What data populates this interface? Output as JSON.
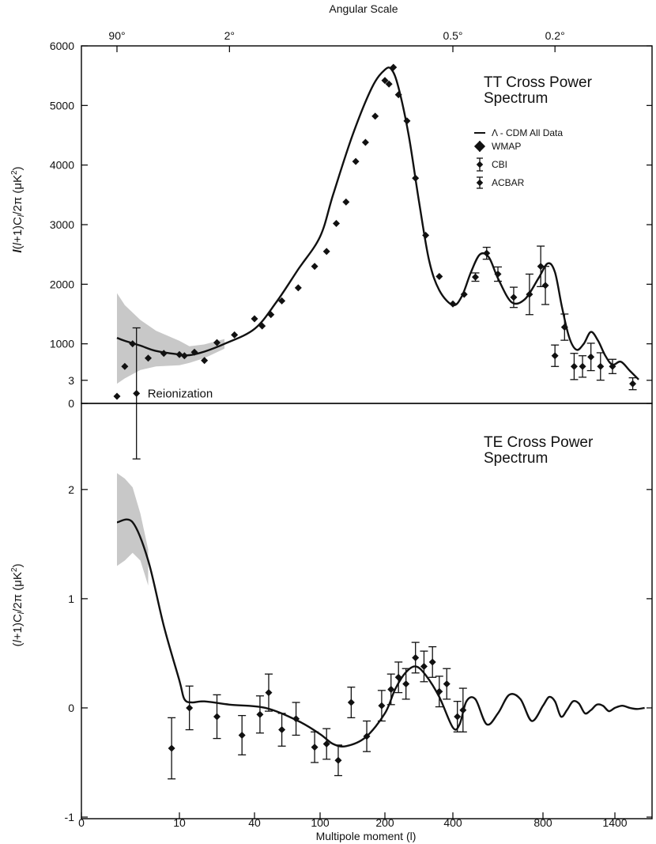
{
  "top_axis": {
    "title": "Angular Scale",
    "ticks": [
      {
        "label": "90°",
        "l": 2
      },
      {
        "label": "2°",
        "l": 30
      },
      {
        "label": "0.5°",
        "l": 400
      },
      {
        "label": "0.2°",
        "l": 900
      }
    ]
  },
  "bottom_axis": {
    "title": "Multipole moment (l)",
    "ticks": [
      {
        "label": "0",
        "l": 0
      },
      {
        "label": "10",
        "l": 10
      },
      {
        "label": "40",
        "l": 40
      },
      {
        "label": "100",
        "l": 100
      },
      {
        "label": "200",
        "l": 200
      },
      {
        "label": "400",
        "l": 400
      },
      {
        "label": "800",
        "l": 800
      },
      {
        "label": "1400",
        "l": 1400
      }
    ]
  },
  "legend": {
    "items": [
      {
        "label": "Λ - CDM All Data",
        "kind": "line"
      },
      {
        "label": "WMAP",
        "kind": "marker"
      },
      {
        "label": "CBI",
        "kind": "marker"
      },
      {
        "label": "ACBAR",
        "kind": "marker"
      }
    ]
  },
  "chart_data": [
    {
      "type": "scatter",
      "title": "TT Cross Power Spectrum",
      "ylabel": "l(l+1)C_l/2π (μK²)",
      "xlabel": "",
      "xscale": "custom-compressed multipole",
      "ylim": [
        0,
        6000
      ],
      "yticks": [
        0,
        1000,
        2000,
        3000,
        4000,
        5000,
        6000
      ],
      "model": {
        "name": "Λ - CDM All Data",
        "x": [
          2,
          3,
          5,
          7,
          10,
          14,
          20,
          28,
          40,
          60,
          80,
          100,
          120,
          150,
          180,
          200,
          220,
          240,
          270,
          300,
          330,
          360,
          400,
          440,
          480,
          520,
          560,
          600,
          660,
          720,
          780,
          840,
          900,
          960,
          1020,
          1080,
          1140,
          1200,
          1260,
          1320,
          1380,
          1440,
          1500,
          1560
        ],
        "y": [
          1100,
          1050,
          970,
          880,
          820,
          810,
          870,
          1000,
          1250,
          1700,
          2250,
          2800,
          3500,
          4500,
          5300,
          5600,
          5600,
          5300,
          4500,
          3400,
          2400,
          1900,
          1650,
          1800,
          2200,
          2500,
          2450,
          2100,
          1700,
          1750,
          2100,
          2350,
          2200,
          1600,
          1100,
          900,
          1000,
          1200,
          1050,
          800,
          650,
          700,
          550,
          400
        ]
      },
      "band": {
        "x": [
          2,
          3,
          5,
          7,
          10,
          14,
          20,
          28
        ],
        "upper": [
          1850,
          1650,
          1400,
          1220,
          1050,
          960,
          990,
          1080
        ],
        "lower": [
          330,
          420,
          560,
          620,
          640,
          680,
          760,
          920
        ]
      },
      "points": [
        {
          "x": 2,
          "y": 120
        },
        {
          "x": 3,
          "y": 620
        },
        {
          "x": 4,
          "y": 1000
        },
        {
          "x": 6,
          "y": 760
        },
        {
          "x": 8,
          "y": 840
        },
        {
          "x": 10,
          "y": 820
        },
        {
          "x": 12,
          "y": 800
        },
        {
          "x": 16,
          "y": 860
        },
        {
          "x": 20,
          "y": 720
        },
        {
          "x": 25,
          "y": 1020
        },
        {
          "x": 32,
          "y": 1150
        },
        {
          "x": 40,
          "y": 1420
        },
        {
          "x": 47,
          "y": 1300
        },
        {
          "x": 55,
          "y": 1490
        },
        {
          "x": 65,
          "y": 1720
        },
        {
          "x": 80,
          "y": 1940
        },
        {
          "x": 95,
          "y": 2300
        },
        {
          "x": 110,
          "y": 2550
        },
        {
          "x": 125,
          "y": 3020
        },
        {
          "x": 140,
          "y": 3380
        },
        {
          "x": 155,
          "y": 4060
        },
        {
          "x": 170,
          "y": 4380
        },
        {
          "x": 185,
          "y": 4820
        },
        {
          "x": 200,
          "y": 5420
        },
        {
          "x": 212,
          "y": 5360
        },
        {
          "x": 225,
          "y": 5640
        },
        {
          "x": 240,
          "y": 5180
        },
        {
          "x": 265,
          "y": 4740
        },
        {
          "x": 290,
          "y": 3780
        },
        {
          "x": 320,
          "y": 2820
        },
        {
          "x": 360,
          "y": 2130
        },
        {
          "x": 400,
          "y": 1670
        },
        {
          "x": 450,
          "y": 1830
        },
        {
          "x": 500,
          "y": 2120,
          "err": 70
        },
        {
          "x": 550,
          "y": 2520,
          "err": 100
        },
        {
          "x": 600,
          "y": 2170,
          "err": 120
        },
        {
          "x": 670,
          "y": 1780,
          "err": 170
        },
        {
          "x": 740,
          "y": 1830,
          "err": 340
        },
        {
          "x": 790,
          "y": 2300,
          "err": 340
        },
        {
          "x": 820,
          "y": 1980,
          "err": 320
        },
        {
          "x": 900,
          "y": 800,
          "err": 180
        },
        {
          "x": 980,
          "y": 1280,
          "err": 220
        },
        {
          "x": 1060,
          "y": 620,
          "err": 220
        },
        {
          "x": 1130,
          "y": 620,
          "err": 180
        },
        {
          "x": 1200,
          "y": 780,
          "err": 230
        },
        {
          "x": 1280,
          "y": 620,
          "err": 230
        },
        {
          "x": 1380,
          "y": 620,
          "err": 120
        },
        {
          "x": 1520,
          "y": 330,
          "err": 100
        }
      ],
      "legend_position": "top-right"
    },
    {
      "type": "scatter",
      "title": "TE Cross Power Spectrum",
      "ylabel": "(l+1)C_l/2π (μK²)",
      "xlabel": "Multipole moment (l)",
      "ylim": [
        -1,
        3.6
      ],
      "yticks": [
        -1,
        0,
        1,
        2,
        3
      ],
      "annotation": {
        "text": "Reionization",
        "x": 4.5,
        "y": 2.88
      },
      "model": {
        "name": "Λ - CDM All Data",
        "x": [
          2,
          4,
          6,
          8,
          10,
          12,
          15,
          20,
          30,
          50,
          80,
          100,
          120,
          140,
          170,
          200,
          230,
          260,
          290,
          320,
          360,
          400,
          430,
          460,
          500,
          550,
          600,
          650,
          700,
          750,
          800,
          850,
          900,
          950,
          1000,
          1050,
          1100,
          1150,
          1200,
          1250,
          1300,
          1350,
          1400,
          1450,
          1500,
          1550,
          1600
        ],
        "y": [
          1.7,
          1.7,
          1.35,
          0.75,
          0.25,
          0.08,
          0.05,
          0.06,
          0.03,
          0.0,
          -0.12,
          -0.24,
          -0.33,
          -0.35,
          -0.27,
          -0.05,
          0.17,
          0.32,
          0.38,
          0.3,
          0.1,
          -0.18,
          -0.15,
          0.06,
          0.08,
          -0.15,
          -0.05,
          0.12,
          0.08,
          -0.12,
          0.02,
          0.1,
          0.06,
          -0.08,
          -0.02,
          0.06,
          0.04,
          -0.05,
          -0.02,
          0.03,
          0.02,
          -0.03,
          0.0,
          0.02,
          0.0,
          -0.01,
          0.0
        ]
      },
      "band": {
        "x": [
          2,
          3,
          4,
          5,
          6
        ],
        "upper": [
          2.15,
          2.1,
          2.02,
          1.78,
          1.45
        ],
        "lower": [
          1.3,
          1.35,
          1.42,
          1.35,
          1.12
        ]
      },
      "points": [
        {
          "x": 4.5,
          "y": 2.88,
          "err": 0.6
        },
        {
          "x": 9,
          "y": -0.37,
          "err": 0.28
        },
        {
          "x": 14,
          "y": 0.0,
          "err": 0.2
        },
        {
          "x": 25,
          "y": -0.08,
          "err": 0.2
        },
        {
          "x": 35,
          "y": -0.25,
          "err": 0.18
        },
        {
          "x": 45,
          "y": -0.06,
          "err": 0.17
        },
        {
          "x": 53,
          "y": 0.14,
          "err": 0.17
        },
        {
          "x": 65,
          "y": -0.2,
          "err": 0.15
        },
        {
          "x": 78,
          "y": -0.1,
          "err": 0.15
        },
        {
          "x": 95,
          "y": -0.36,
          "err": 0.14
        },
        {
          "x": 110,
          "y": -0.33,
          "err": 0.14
        },
        {
          "x": 128,
          "y": -0.48,
          "err": 0.14
        },
        {
          "x": 148,
          "y": 0.05,
          "err": 0.14
        },
        {
          "x": 172,
          "y": -0.26,
          "err": 0.14
        },
        {
          "x": 195,
          "y": 0.02,
          "err": 0.14
        },
        {
          "x": 218,
          "y": 0.17,
          "err": 0.14
        },
        {
          "x": 240,
          "y": 0.28,
          "err": 0.14
        },
        {
          "x": 262,
          "y": 0.22,
          "err": 0.14
        },
        {
          "x": 290,
          "y": 0.46,
          "err": 0.14
        },
        {
          "x": 315,
          "y": 0.38,
          "err": 0.14
        },
        {
          "x": 340,
          "y": 0.42,
          "err": 0.14
        },
        {
          "x": 360,
          "y": 0.15,
          "err": 0.14
        },
        {
          "x": 382,
          "y": 0.22,
          "err": 0.14
        },
        {
          "x": 420,
          "y": -0.08,
          "err": 0.14
        },
        {
          "x": 445,
          "y": -0.02,
          "err": 0.2
        }
      ]
    }
  ]
}
